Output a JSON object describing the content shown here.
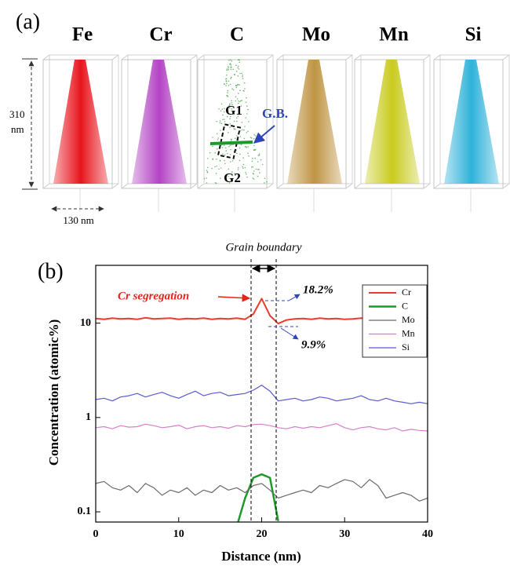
{
  "panel_a": {
    "label": "(a)",
    "columns": [
      {
        "label": "Fe",
        "color": "#e8141c"
      },
      {
        "label": "Cr",
        "color": "#b343c4"
      },
      {
        "label": "C",
        "color": "#3c9c3c"
      },
      {
        "label": "Mo",
        "color": "#bf9443"
      },
      {
        "label": "Mn",
        "color": "#c9cb1f"
      },
      {
        "label": "Si",
        "color": "#2fb2da"
      }
    ],
    "height_value": "310",
    "height_unit": "nm",
    "width_label": "130 nm",
    "g1": "G1",
    "g2": "G2",
    "gb": "G.B."
  },
  "chart_data": {
    "type": "line",
    "panel_label": "(b)",
    "title": "Grain boundary",
    "x_label": "Distance (nm)",
    "y_label": "Concentration (atomic%)",
    "annotations": {
      "segregation": "Cr segregation",
      "peak": "18.2%",
      "dip": "9.9%"
    },
    "log_y": true,
    "legend": "upper right",
    "xlim": [
      0,
      40
    ],
    "xticks": [
      0,
      10,
      20,
      30,
      40
    ],
    "ylim": [
      0.078,
      41
    ],
    "yticks": [
      0.1,
      1,
      10
    ],
    "x": [
      0,
      1,
      2,
      3,
      4,
      5,
      6,
      7,
      8,
      9,
      10,
      11,
      12,
      13,
      14,
      15,
      16,
      17,
      18,
      19,
      20,
      21,
      22,
      23,
      24,
      25,
      26,
      27,
      28,
      29,
      30,
      31,
      32,
      33,
      34,
      35,
      36,
      37,
      38,
      39,
      40
    ],
    "series": [
      {
        "name": "Cr",
        "color": "#f03a2e",
        "width": 2,
        "values": [
          11.2,
          11.0,
          11.3,
          11.1,
          11.2,
          11.0,
          11.4,
          11.1,
          11.2,
          11.3,
          11.0,
          11.2,
          11.1,
          11.3,
          11.0,
          11.2,
          11.1,
          11.3,
          11.0,
          12.5,
          18.2,
          12.0,
          9.9,
          10.8,
          11.1,
          11.2,
          11.0,
          11.3,
          11.1,
          11.2,
          11.0,
          11.1,
          11.3,
          11.2,
          11.0,
          11.2,
          11.1,
          11.3,
          11.2,
          11.0,
          11.4
        ]
      },
      {
        "name": "C",
        "color": "#1f9a2a",
        "width": 2.5,
        "values": [
          null,
          null,
          null,
          null,
          null,
          null,
          null,
          null,
          null,
          null,
          null,
          null,
          null,
          null,
          null,
          null,
          null,
          0.07,
          0.14,
          0.23,
          0.25,
          0.23,
          0.08,
          null,
          null,
          null,
          null,
          null,
          null,
          null,
          null,
          null,
          null,
          null,
          null,
          null,
          null,
          null,
          null,
          null,
          null
        ]
      },
      {
        "name": "Mo",
        "color": "#6b6b6b",
        "width": 1.2,
        "values": [
          0.2,
          0.21,
          0.18,
          0.17,
          0.19,
          0.16,
          0.2,
          0.18,
          0.15,
          0.17,
          0.16,
          0.18,
          0.15,
          0.17,
          0.16,
          0.19,
          0.17,
          0.18,
          0.16,
          0.19,
          0.2,
          0.17,
          0.14,
          0.15,
          0.16,
          0.17,
          0.16,
          0.19,
          0.18,
          0.2,
          0.22,
          0.21,
          0.18,
          0.22,
          0.19,
          0.14,
          0.15,
          0.16,
          0.15,
          0.13,
          0.14
        ]
      },
      {
        "name": "Mn",
        "color": "#d780c8",
        "width": 1.2,
        "values": [
          0.78,
          0.8,
          0.76,
          0.82,
          0.79,
          0.8,
          0.85,
          0.82,
          0.78,
          0.8,
          0.83,
          0.76,
          0.8,
          0.82,
          0.78,
          0.8,
          0.77,
          0.82,
          0.8,
          0.84,
          0.85,
          0.82,
          0.78,
          0.76,
          0.8,
          0.77,
          0.8,
          0.78,
          0.82,
          0.86,
          0.78,
          0.74,
          0.78,
          0.8,
          0.76,
          0.74,
          0.78,
          0.72,
          0.75,
          0.73,
          0.72
        ]
      },
      {
        "name": "Si",
        "color": "#5b5bd0",
        "width": 1.2,
        "values": [
          1.55,
          1.6,
          1.5,
          1.65,
          1.7,
          1.8,
          1.65,
          1.75,
          1.85,
          1.7,
          1.6,
          1.75,
          1.9,
          1.7,
          1.8,
          1.85,
          1.7,
          1.75,
          1.8,
          1.95,
          2.2,
          1.9,
          1.5,
          1.55,
          1.6,
          1.5,
          1.55,
          1.65,
          1.6,
          1.5,
          1.55,
          1.6,
          1.7,
          1.55,
          1.5,
          1.6,
          1.5,
          1.45,
          1.4,
          1.45,
          1.4
        ]
      }
    ]
  }
}
